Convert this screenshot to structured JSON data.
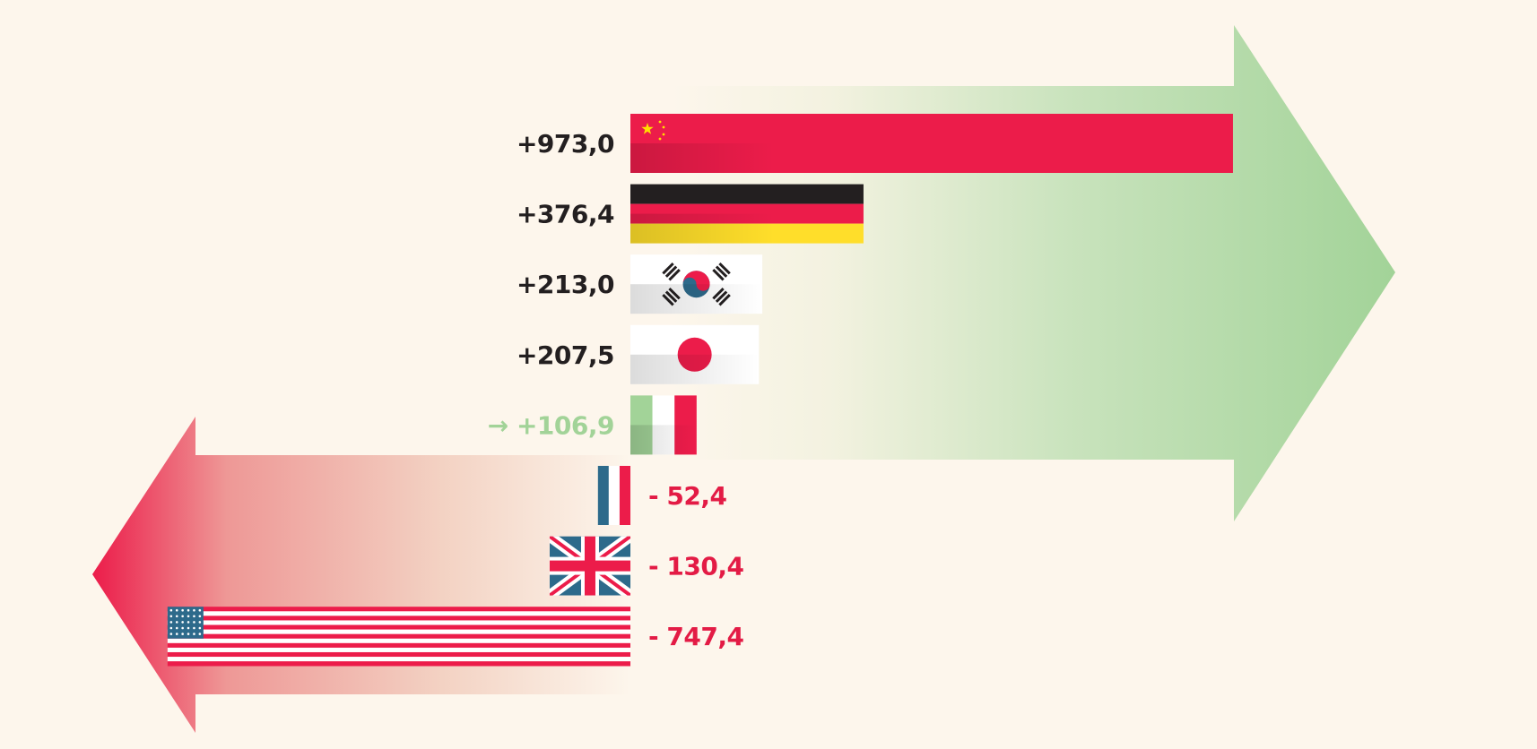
{
  "chart_data": {
    "type": "bar",
    "orientation": "horizontal",
    "title": "",
    "xlabel": "",
    "ylabel": "",
    "grid": false,
    "categories": [
      "China",
      "Germany",
      "South Korea",
      "Japan",
      "Italy",
      "France",
      "United Kingdom",
      "United States"
    ],
    "flags": [
      "flag-china",
      "flag-germany",
      "flag-south-korea",
      "flag-japan",
      "flag-italy",
      "flag-france",
      "flag-uk",
      "flag-usa"
    ],
    "values": [
      973.0,
      376.4,
      213.0,
      207.5,
      106.9,
      -52.4,
      -130.4,
      -747.4
    ],
    "labels": [
      "+973,0",
      "+376,4",
      "+213,0",
      "+207,5",
      "+106,9",
      "- 52,4",
      "- 130,4",
      "- 747,4"
    ],
    "highlight_marker": "→",
    "highlight_index": 4,
    "xlim": [
      -747.4,
      973.0
    ],
    "colors": {
      "positive_arrow": "#a2d398",
      "negative_arrow": "#ec1c4a",
      "positive_label": "#231f20",
      "negative_label": "#e31b45",
      "highlight_label": "#a2d398",
      "background": "#fdf6ec"
    }
  }
}
